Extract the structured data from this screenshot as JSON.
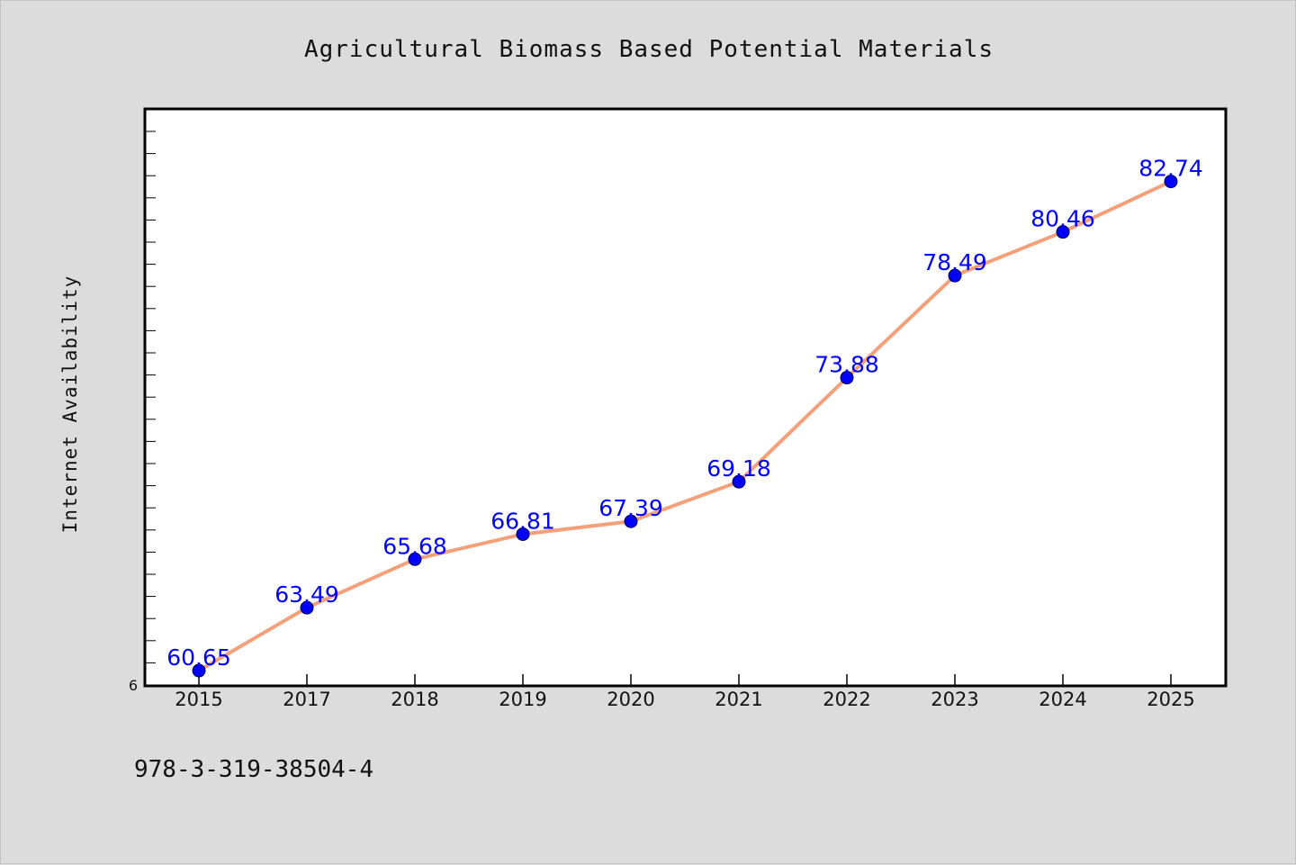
{
  "colors": {
    "background": "#dcdcdc",
    "plot_background": "#ffffff",
    "line": "#f4a07a",
    "marker_fill": "#0000ff",
    "data_label": "#0000ff"
  },
  "footer": {
    "text": "978-3-319-38504-4"
  },
  "chart_data": {
    "type": "line",
    "title": "Agricultural Biomass Based Potential Materials",
    "xlabel": "",
    "ylabel": "Internet Availability",
    "categories": [
      "2015",
      "2017",
      "2018",
      "2019",
      "2020",
      "2021",
      "2022",
      "2023",
      "2024",
      "2025"
    ],
    "series": [
      {
        "values": [
          60.65,
          63.49,
          65.68,
          66.81,
          67.39,
          69.18,
          73.88,
          78.49,
          80.46,
          82.74
        ],
        "data_labels": [
          "60.65",
          "63.49",
          "65.68",
          "66.81",
          "67.39",
          "69.18",
          "73.88",
          "78.49",
          "80.46",
          "82.74"
        ]
      }
    ],
    "ylim": [
      60,
      86
    ],
    "yticks_labeled": [
      "6"
    ],
    "grid": false,
    "legend": "none"
  }
}
